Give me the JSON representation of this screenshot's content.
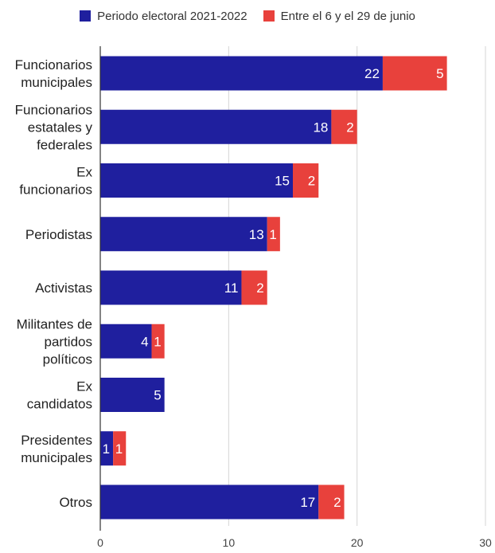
{
  "chart_data": {
    "type": "bar",
    "orientation": "horizontal",
    "stacked": true,
    "categories": [
      [
        "Funcionarios",
        "municipales"
      ],
      [
        "Funcionarios",
        "estatales y",
        "federales"
      ],
      [
        "Ex",
        "funcionarios"
      ],
      [
        "Periodistas"
      ],
      [
        "Activistas"
      ],
      [
        "Militantes de",
        "partidos",
        "políticos"
      ],
      [
        "Ex",
        "candidatos"
      ],
      [
        "Presidentes",
        "municipales"
      ],
      [
        "Otros"
      ]
    ],
    "series": [
      {
        "name": "Periodo electoral 2021-2022",
        "color": "#1f1f9e",
        "values": [
          22,
          18,
          15,
          13,
          11,
          4,
          5,
          1,
          17
        ]
      },
      {
        "name": "Entre el 6 y el 29 de junio",
        "color": "#e8413c",
        "values": [
          5,
          2,
          2,
          1,
          2,
          1,
          0,
          1,
          2
        ]
      }
    ],
    "xlim": [
      0,
      30
    ],
    "xticks": [
      0,
      10,
      20,
      30
    ],
    "grid": true,
    "legend_position": "top",
    "data_labels": true
  }
}
